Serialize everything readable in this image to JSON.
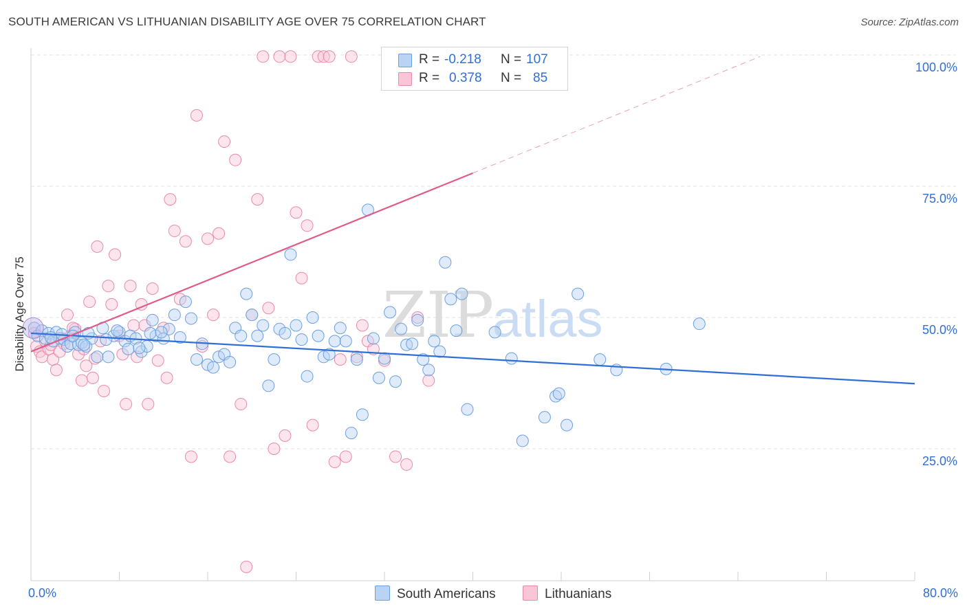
{
  "title": "SOUTH AMERICAN VS LITHUANIAN DISABILITY AGE OVER 75 CORRELATION CHART",
  "source": "Source: ZipAtlas.com",
  "watermark": {
    "zip": "ZIP",
    "atlas": "atlas"
  },
  "legend": {
    "r_label": "R =",
    "n_label": "N =",
    "rows": [
      {
        "r": "-0.218",
        "n": "107",
        "swatch_fill": "#b9d3f5",
        "swatch_stroke": "#6b9fe0"
      },
      {
        "r": "0.378",
        "n": "85",
        "swatch_fill": "#f8c6d6",
        "swatch_stroke": "#e88aaa"
      }
    ]
  },
  "bottom_legend": [
    {
      "label": "South Americans",
      "swatch_fill": "#b9d3f5",
      "swatch_stroke": "#6b9fe0"
    },
    {
      "label": "Lithuanians",
      "swatch_fill": "#f8c6d6",
      "swatch_stroke": "#e88aaa"
    }
  ],
  "chart_data": {
    "type": "scatter",
    "title": "SOUTH AMERICAN VS LITHUANIAN DISABILITY AGE OVER 75 CORRELATION CHART",
    "xlabel": "",
    "ylabel": "Disability Age Over 75",
    "xlim": [
      0,
      80
    ],
    "ylim": [
      0,
      102
    ],
    "x_tick_labels": [
      "0.0%",
      "80.0%"
    ],
    "y_ticks": [
      25,
      50,
      75,
      100
    ],
    "y_tick_labels": [
      "25.0%",
      "50.0%",
      "75.0%",
      "100.0%"
    ],
    "grid": "horizontal dashed",
    "legend_placement": "top-center",
    "colors": {
      "blue": "#2f6fd6",
      "pink": "#e05a8a",
      "blue_fill": "#b9d3f5",
      "pink_fill": "#f8c6d6"
    },
    "series": [
      {
        "name": "South Americans",
        "color": "#2f6fd6",
        "trend": {
          "x0": 0.0,
          "y0": 47.0,
          "x1": 80.0,
          "y1": 37.4
        },
        "points": [
          [
            0.3,
            48.0
          ],
          [
            0.6,
            46.5
          ],
          [
            1.0,
            47.5
          ],
          [
            1.3,
            46.0
          ],
          [
            1.6,
            47.0
          ],
          [
            2.0,
            45.5
          ],
          [
            2.3,
            47.2
          ],
          [
            2.6,
            46.0
          ],
          [
            3.0,
            45.8
          ],
          [
            3.3,
            44.5
          ],
          [
            3.6,
            45.0
          ],
          [
            4.0,
            47.2
          ],
          [
            4.3,
            44.8
          ],
          [
            4.6,
            45.2
          ],
          [
            5.0,
            44.5
          ],
          [
            5.5,
            46.0
          ],
          [
            6.0,
            42.5
          ],
          [
            6.5,
            48.0
          ],
          [
            7.0,
            42.5
          ],
          [
            7.5,
            46.5
          ],
          [
            8.0,
            47.2
          ],
          [
            8.5,
            45.5
          ],
          [
            9.0,
            46.5
          ],
          [
            9.5,
            46.0
          ],
          [
            10.0,
            43.5
          ],
          [
            10.5,
            44.5
          ],
          [
            11.0,
            49.5
          ],
          [
            11.3,
            46.5
          ],
          [
            12.0,
            46.0
          ],
          [
            12.5,
            47.8
          ],
          [
            13.0,
            50.5
          ],
          [
            13.5,
            46.2
          ],
          [
            14.0,
            53.0
          ],
          [
            14.5,
            49.8
          ],
          [
            15.0,
            42.0
          ],
          [
            15.5,
            45.0
          ],
          [
            16.0,
            41.0
          ],
          [
            16.5,
            40.5
          ],
          [
            17.0,
            42.5
          ],
          [
            17.5,
            43.0
          ],
          [
            18.0,
            41.5
          ],
          [
            18.5,
            48.0
          ],
          [
            19.0,
            46.5
          ],
          [
            19.5,
            54.5
          ],
          [
            20.0,
            50.5
          ],
          [
            20.5,
            46.5
          ],
          [
            21.0,
            48.5
          ],
          [
            21.5,
            37.0
          ],
          [
            22.0,
            42.0
          ],
          [
            22.5,
            47.8
          ],
          [
            23.0,
            47.0
          ],
          [
            23.5,
            62.0
          ],
          [
            24.0,
            48.5
          ],
          [
            24.5,
            45.8
          ],
          [
            25.0,
            38.8
          ],
          [
            25.5,
            50.0
          ],
          [
            26.0,
            46.5
          ],
          [
            26.5,
            42.5
          ],
          [
            27.0,
            43.0
          ],
          [
            27.5,
            45.5
          ],
          [
            28.0,
            48.0
          ],
          [
            28.5,
            45.5
          ],
          [
            29.0,
            28.0
          ],
          [
            29.5,
            42.0
          ],
          [
            30.0,
            31.5
          ],
          [
            30.5,
            70.5
          ],
          [
            31.0,
            46.0
          ],
          [
            31.5,
            38.5
          ],
          [
            32.0,
            42.2
          ],
          [
            32.5,
            51.0
          ],
          [
            33.0,
            37.8
          ],
          [
            33.5,
            47.8
          ],
          [
            34.0,
            44.8
          ],
          [
            34.5,
            45.0
          ],
          [
            35.0,
            49.5
          ],
          [
            35.5,
            42.0
          ],
          [
            36.0,
            40.0
          ],
          [
            36.5,
            45.5
          ],
          [
            37.0,
            43.5
          ],
          [
            37.5,
            60.5
          ],
          [
            38.0,
            53.5
          ],
          [
            38.5,
            47.5
          ],
          [
            39.0,
            54.5
          ],
          [
            39.5,
            32.5
          ],
          [
            42.0,
            47.2
          ],
          [
            43.5,
            42.2
          ],
          [
            44.5,
            26.5
          ],
          [
            46.5,
            31.0
          ],
          [
            47.5,
            35.0
          ],
          [
            47.8,
            35.5
          ],
          [
            48.5,
            29.5
          ],
          [
            49.5,
            54.5
          ],
          [
            1.8,
            46.2
          ],
          [
            2.8,
            46.8
          ],
          [
            3.8,
            46.5
          ],
          [
            4.8,
            44.8
          ],
          [
            5.2,
            47.0
          ],
          [
            6.8,
            45.8
          ],
          [
            7.8,
            47.5
          ],
          [
            8.8,
            44.0
          ],
          [
            9.8,
            44.2
          ],
          [
            10.8,
            47.0
          ],
          [
            11.8,
            47.2
          ],
          [
            60.5,
            48.8
          ],
          [
            51.5,
            42.0
          ],
          [
            53.0,
            40.0
          ],
          [
            57.5,
            40.2
          ]
        ]
      },
      {
        "name": "Lithuanians",
        "color": "#e05a8a",
        "trend": {
          "x0": 0.0,
          "y0": 43.5,
          "x1": 40.0,
          "y1": 77.5
        },
        "trend_dashed_end": {
          "x": 66.0,
          "y": 99.7
        },
        "points": [
          [
            0.3,
            47.0
          ],
          [
            0.5,
            44.5
          ],
          [
            0.8,
            43.5
          ],
          [
            1.0,
            42.5
          ],
          [
            1.3,
            45.5
          ],
          [
            1.6,
            44.0
          ],
          [
            2.0,
            42.0
          ],
          [
            2.3,
            40.0
          ],
          [
            2.6,
            43.5
          ],
          [
            3.0,
            45.0
          ],
          [
            3.3,
            50.5
          ],
          [
            3.6,
            46.5
          ],
          [
            4.0,
            47.8
          ],
          [
            4.3,
            43.0
          ],
          [
            4.6,
            38.0
          ],
          [
            5.0,
            40.8
          ],
          [
            5.3,
            53.0
          ],
          [
            5.6,
            38.5
          ],
          [
            6.0,
            63.5
          ],
          [
            6.3,
            45.5
          ],
          [
            6.6,
            36.0
          ],
          [
            7.0,
            56.0
          ],
          [
            7.3,
            52.5
          ],
          [
            7.6,
            62.0
          ],
          [
            8.0,
            46.5
          ],
          [
            8.3,
            43.0
          ],
          [
            8.6,
            33.5
          ],
          [
            9.0,
            56.0
          ],
          [
            9.3,
            48.5
          ],
          [
            9.6,
            42.5
          ],
          [
            10.0,
            52.5
          ],
          [
            10.3,
            48.5
          ],
          [
            10.6,
            33.5
          ],
          [
            11.0,
            55.5
          ],
          [
            11.5,
            41.8
          ],
          [
            12.0,
            48.0
          ],
          [
            12.3,
            38.5
          ],
          [
            12.6,
            72.5
          ],
          [
            13.0,
            66.5
          ],
          [
            13.5,
            53.5
          ],
          [
            14.0,
            64.5
          ],
          [
            14.5,
            23.5
          ],
          [
            15.0,
            88.5
          ],
          [
            15.5,
            44.5
          ],
          [
            16.0,
            65.0
          ],
          [
            16.5,
            50.5
          ],
          [
            17.0,
            66.0
          ],
          [
            17.5,
            83.5
          ],
          [
            18.0,
            23.5
          ],
          [
            18.5,
            80.0
          ],
          [
            19.0,
            33.5
          ],
          [
            19.5,
            2.5
          ],
          [
            20.0,
            50.5
          ],
          [
            20.5,
            72.5
          ],
          [
            21.0,
            99.7
          ],
          [
            21.5,
            51.8
          ],
          [
            22.0,
            25.0
          ],
          [
            22.5,
            99.7
          ],
          [
            23.0,
            27.5
          ],
          [
            23.5,
            99.7
          ],
          [
            24.0,
            70.0
          ],
          [
            24.5,
            57.5
          ],
          [
            25.0,
            67.5
          ],
          [
            25.5,
            29.5
          ],
          [
            26.0,
            99.7
          ],
          [
            26.5,
            99.7
          ],
          [
            27.0,
            99.7
          ],
          [
            27.5,
            22.5
          ],
          [
            28.0,
            42.0
          ],
          [
            28.5,
            23.5
          ],
          [
            29.0,
            99.7
          ],
          [
            29.5,
            42.5
          ],
          [
            30.0,
            48.5
          ],
          [
            30.5,
            45.5
          ],
          [
            31.0,
            44.0
          ],
          [
            32.0,
            41.8
          ],
          [
            33.0,
            23.5
          ],
          [
            34.0,
            22.0
          ],
          [
            35.0,
            50.0
          ],
          [
            36.0,
            38.0
          ],
          [
            1.8,
            44.8
          ],
          [
            2.8,
            46.0
          ],
          [
            3.8,
            48.0
          ],
          [
            4.8,
            44.0
          ],
          [
            5.8,
            42.2
          ]
        ]
      }
    ]
  }
}
